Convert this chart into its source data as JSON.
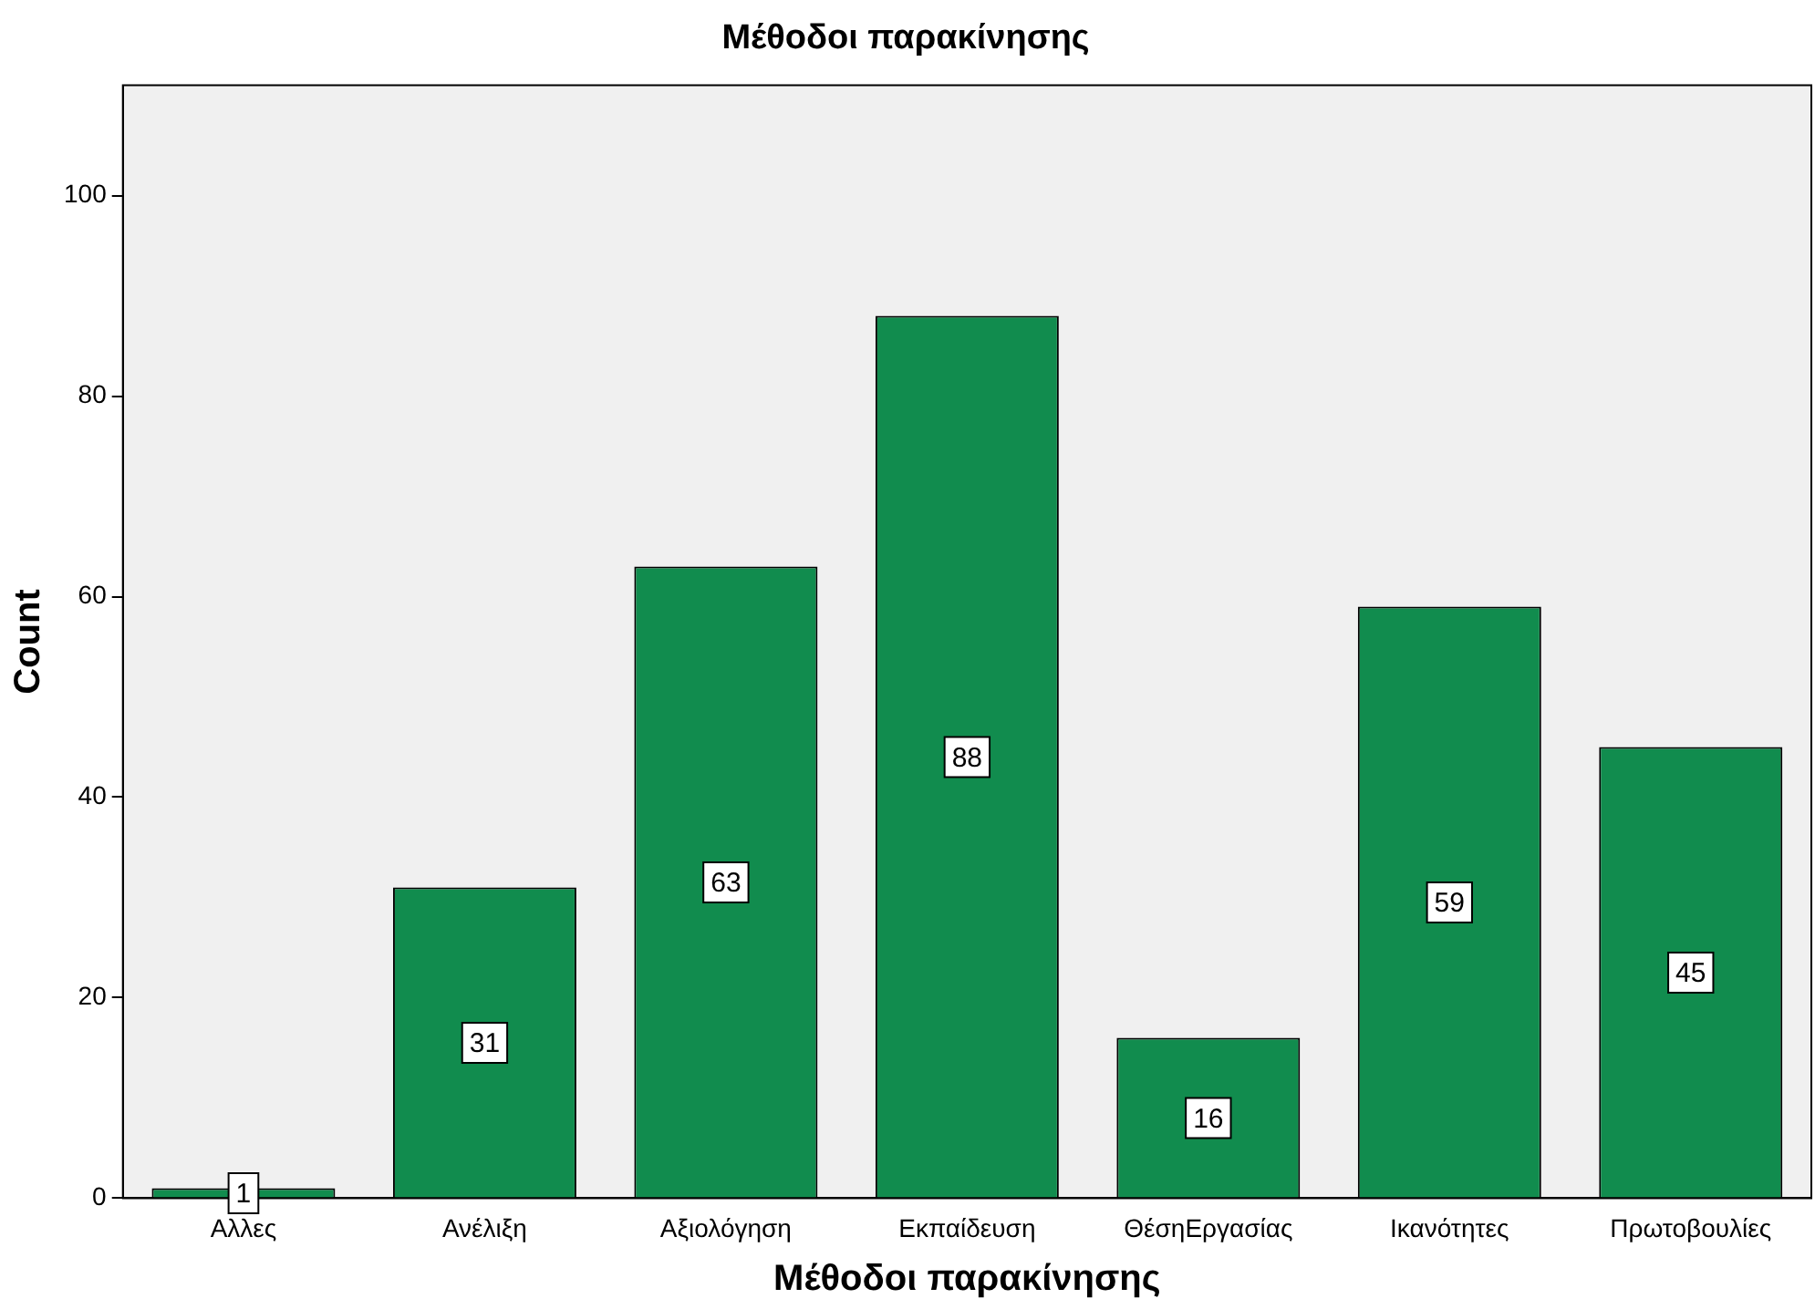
{
  "chart_data": {
    "type": "bar",
    "title": "Μέθοδοι παρακίνησης",
    "xlabel": "Μέθοδοι παρακίνησης",
    "ylabel": "Count",
    "categories": [
      "Αλλες",
      "Ανέλιξη",
      "Αξιολόγηση",
      "Εκπαίδευση",
      "ΘέσηΕργασίας",
      "Ικανότητες",
      "Πρωτοβουλίες"
    ],
    "values": [
      1,
      31,
      63,
      88,
      16,
      59,
      45
    ],
    "color": "#118c4e",
    "ylim": [
      0,
      111
    ],
    "yticks": [
      0,
      20,
      40,
      60,
      80,
      100
    ],
    "grid": false,
    "legend": false,
    "data_labels": true
  }
}
